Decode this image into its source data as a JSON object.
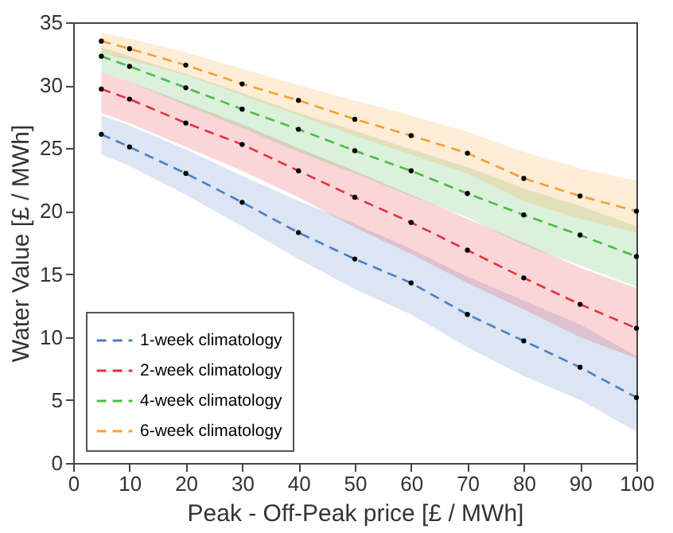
{
  "chart_data": {
    "type": "line",
    "xlabel": "Peak - Off-Peak price [£ / MWh]",
    "ylabel": "Water Value [£ / MWh]",
    "x": [
      5,
      10,
      20,
      30,
      40,
      50,
      60,
      70,
      80,
      90,
      100
    ],
    "series": [
      {
        "name": "1-week climatology",
        "color": "#4a7fc1",
        "values": [
          26.1,
          25.1,
          23.0,
          20.7,
          18.3,
          16.2,
          14.3,
          11.8,
          9.7,
          7.6,
          5.2
        ],
        "lower": [
          24.5,
          23.6,
          21.3,
          18.8,
          16.2,
          13.8,
          11.8,
          9.2,
          6.9,
          5.0,
          2.5
        ],
        "upper": [
          27.6,
          26.8,
          24.9,
          22.8,
          20.8,
          19.0,
          17.0,
          14.8,
          12.9,
          11.0,
          8.5
        ]
      },
      {
        "name": "2-week climatology",
        "color": "#e8303a",
        "values": [
          29.7,
          28.9,
          27.0,
          25.3,
          23.2,
          21.1,
          19.1,
          16.9,
          14.7,
          12.6,
          10.7
        ],
        "lower": [
          27.8,
          27.0,
          25.1,
          23.2,
          21.1,
          18.7,
          16.6,
          14.3,
          12.2,
          10.0,
          8.3
        ],
        "upper": [
          31.0,
          30.3,
          28.6,
          26.9,
          25.0,
          23.2,
          21.3,
          19.4,
          17.5,
          15.5,
          13.9
        ]
      },
      {
        "name": "4-week climatology",
        "color": "#4db84a",
        "values": [
          32.3,
          31.5,
          29.8,
          28.1,
          26.5,
          24.8,
          23.2,
          21.4,
          19.7,
          18.1,
          16.4
        ],
        "lower": [
          31.0,
          30.3,
          28.4,
          26.6,
          24.7,
          23.0,
          21.2,
          19.5,
          17.3,
          15.7,
          14.0
        ],
        "upper": [
          33.0,
          32.3,
          30.9,
          29.4,
          27.8,
          26.4,
          24.9,
          23.5,
          21.8,
          20.4,
          18.8
        ]
      },
      {
        "name": "6-week climatology",
        "color": "#f5a030",
        "values": [
          33.5,
          32.9,
          31.6,
          30.1,
          28.8,
          27.3,
          26.0,
          24.6,
          22.6,
          21.2,
          20.0
        ],
        "lower": [
          32.5,
          32.0,
          30.8,
          29.2,
          27.6,
          26.0,
          24.5,
          23.0,
          20.8,
          19.4,
          18.3
        ],
        "upper": [
          34.2,
          33.7,
          32.6,
          31.3,
          30.0,
          28.8,
          27.6,
          26.3,
          24.7,
          23.4,
          22.4
        ]
      }
    ],
    "xlim": [
      0,
      100
    ],
    "xticks": [
      0,
      10,
      20,
      30,
      40,
      50,
      60,
      70,
      80,
      90,
      100
    ],
    "ylim": [
      0,
      35
    ],
    "yticks": [
      0,
      5,
      10,
      15,
      20,
      25,
      30,
      35
    ],
    "legend": "bottom left",
    "marker": "circle",
    "line_style": "dashed",
    "grid": false
  }
}
